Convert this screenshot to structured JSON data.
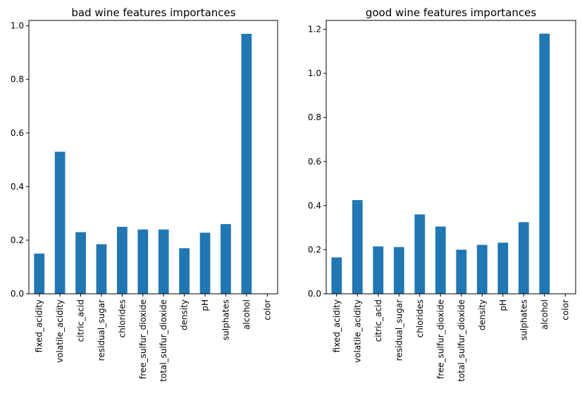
{
  "chart_data": [
    {
      "type": "bar",
      "title": "bad wine features importances",
      "xlabel": "",
      "ylabel": "",
      "categories": [
        "fixed_acidity",
        "volatile_acidity",
        "citric_acid",
        "residual_sugar",
        "chlorides",
        "free_sulfur_dioxide",
        "total_sulfur_dioxide",
        "density",
        "pH",
        "sulphates",
        "alcohol",
        "color"
      ],
      "values": [
        0.15,
        0.53,
        0.23,
        0.185,
        0.25,
        0.24,
        0.24,
        0.17,
        0.228,
        0.26,
        0.97,
        0.0
      ],
      "ylim": [
        0,
        1.02
      ],
      "yticks": [
        0.0,
        0.2,
        0.4,
        0.6,
        0.8,
        1.0
      ],
      "ytick_labels": [
        "0.0",
        "0.2",
        "0.4",
        "0.6",
        "0.8",
        "1.0"
      ],
      "grid": false,
      "color": "#1f77b4"
    },
    {
      "type": "bar",
      "title": "good wine features importances",
      "xlabel": "",
      "ylabel": "",
      "categories": [
        "fixed_acidity",
        "volatile_acidity",
        "citric_acid",
        "residual_sugar",
        "chlorides",
        "free_sulfur_dioxide",
        "total_sulfur_dioxide",
        "density",
        "pH",
        "sulphates",
        "alcohol",
        "color"
      ],
      "values": [
        0.165,
        0.425,
        0.215,
        0.212,
        0.36,
        0.305,
        0.2,
        0.222,
        0.232,
        0.325,
        1.18,
        0.0
      ],
      "ylim": [
        0,
        1.24
      ],
      "yticks": [
        0.0,
        0.2,
        0.4,
        0.6,
        0.8,
        1.0,
        1.2
      ],
      "ytick_labels": [
        "0.0",
        "0.2",
        "0.4",
        "0.6",
        "0.8",
        "1.0",
        "1.2"
      ],
      "grid": false,
      "color": "#1f77b4"
    }
  ]
}
